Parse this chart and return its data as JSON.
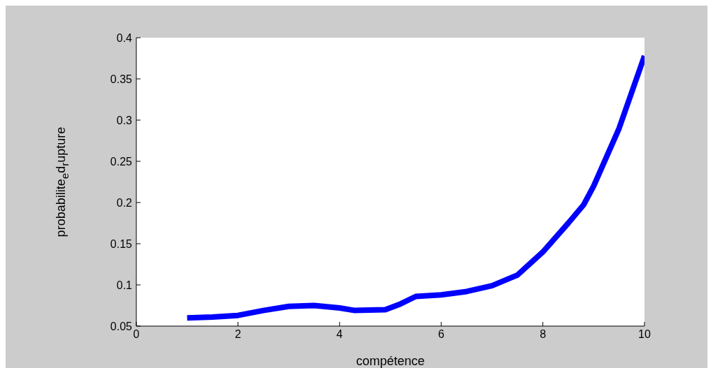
{
  "chart_data": {
    "type": "line",
    "xlabel": "compétence",
    "ylabel": "probabilite$_{e}$d$_{r}$upture",
    "x": [
      1,
      1.5,
      2,
      2.5,
      3,
      3.5,
      4,
      4.3,
      4.9,
      5.2,
      5.5,
      6,
      6.5,
      7,
      7.5,
      8,
      8.5,
      8.8,
      9,
      9.5,
      10
    ],
    "series": [
      {
        "color": "#0000ff",
        "values": [
          0.06,
          0.061,
          0.063,
          0.069,
          0.074,
          0.075,
          0.072,
          0.069,
          0.07,
          0.077,
          0.086,
          0.088,
          0.092,
          0.099,
          0.112,
          0.14,
          0.175,
          0.197,
          0.22,
          0.29,
          0.378
        ]
      }
    ],
    "xlim": [
      0,
      10
    ],
    "xticks": [
      0,
      2,
      4,
      6,
      8,
      10
    ],
    "ylim": [
      0.05,
      0.4
    ],
    "yticks": [
      0.05,
      0.1,
      0.15,
      0.2,
      0.25,
      0.3,
      0.35,
      0.4
    ],
    "legend": false,
    "marker": "none",
    "line_style": "solid"
  }
}
